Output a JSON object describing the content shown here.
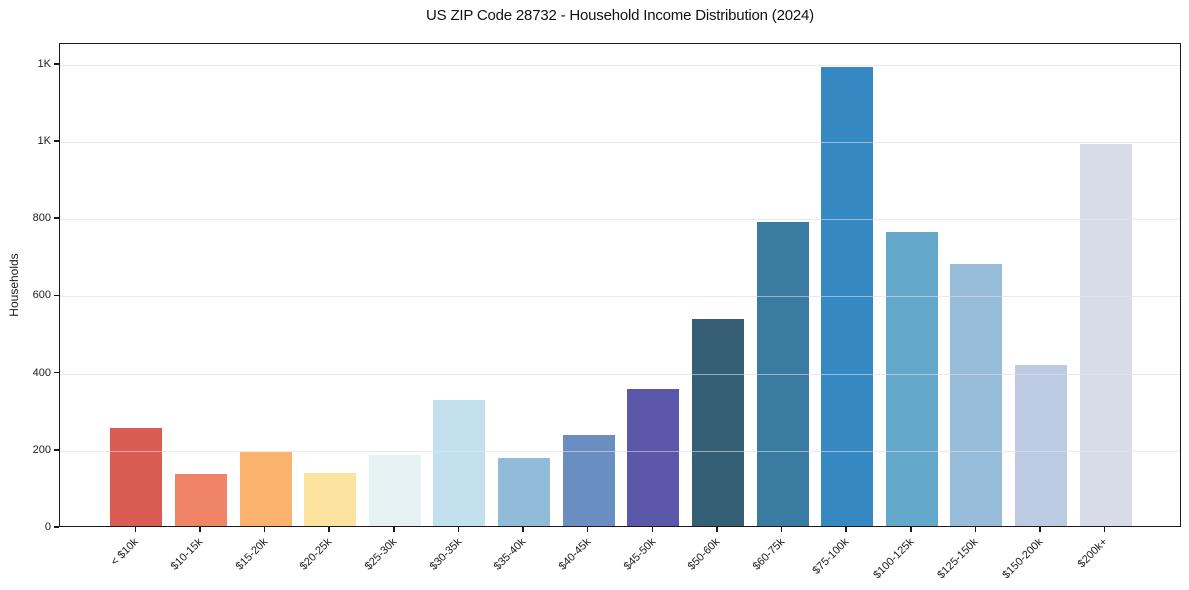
{
  "chart_data": {
    "type": "bar",
    "title": "US ZIP Code 28732 - Household Income Distribution (2024)",
    "xlabel": "",
    "ylabel": "Households",
    "categories": [
      "< $10k",
      "$10-15k",
      "$15-20k",
      "$20-25k",
      "$25-30k",
      "$30-35k",
      "$35-40k",
      "$40-45k",
      "$45-50k",
      "$50-60k",
      "$60-75k",
      "$75-100k",
      "$100-125k",
      "$125-150k",
      "$150-200k",
      "$200k+"
    ],
    "values": [
      253,
      135,
      192,
      137,
      184,
      327,
      176,
      236,
      354,
      536,
      787,
      1189,
      762,
      678,
      416,
      989
    ],
    "bar_colors": [
      "#d95b52",
      "#ef8467",
      "#fab26d",
      "#fde3a0",
      "#e6f2f3",
      "#c2e0ed",
      "#92bbd9",
      "#6a8dc2",
      "#5b58a9",
      "#355f74",
      "#3a7ba1",
      "#3688c2",
      "#64a8cb",
      "#97bcda",
      "#bccbe2",
      "#d8dbe8"
    ],
    "ylim": [
      0,
      1254
    ],
    "yticks": [
      {
        "value": 0,
        "label": "0"
      },
      {
        "value": 200,
        "label": "200"
      },
      {
        "value": 400,
        "label": "400"
      },
      {
        "value": 600,
        "label": "600"
      },
      {
        "value": 800,
        "label": "800"
      },
      {
        "value": 1000,
        "label": "1K"
      },
      {
        "value": 1200,
        "label": "1K"
      }
    ],
    "grid": "horizontal",
    "legend": "none",
    "xtick_rotation_deg": 45
  },
  "frame": {
    "background": "#ffffff",
    "spine_color": "#1a1a1a",
    "grid_color": "#ebebeb",
    "text_color": "#1c1c1c"
  }
}
